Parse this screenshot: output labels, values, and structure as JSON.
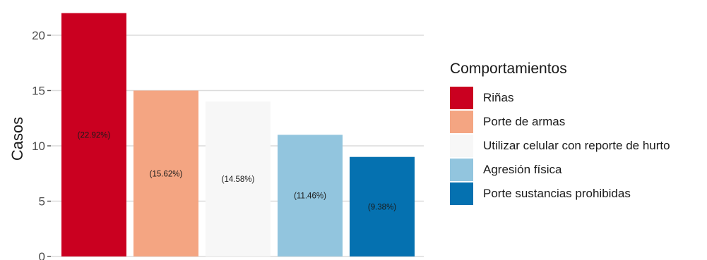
{
  "chart_data": {
    "type": "bar",
    "title": "",
    "xlabel": "",
    "ylabel": "Casos",
    "ylim": [
      0,
      22.5
    ],
    "yticks": [
      0,
      5,
      10,
      15,
      20
    ],
    "grid": true,
    "legend_position": "right",
    "legend_title": "Comportamientos",
    "categories": [
      "Riñas",
      "Porte de armas",
      "Utilizar celular con reporte de hurto",
      "Agresión física",
      "Porte sustancias prohibidas"
    ],
    "values": [
      22,
      15,
      14,
      11,
      9
    ],
    "data_labels": [
      "(22.92%)",
      "(15.62%)",
      "(14.58%)",
      "(11.46%)",
      "(9.38%)"
    ],
    "colors": [
      "#ca0020",
      "#f4a582",
      "#f7f7f7",
      "#92c5de",
      "#0571b0"
    ]
  }
}
